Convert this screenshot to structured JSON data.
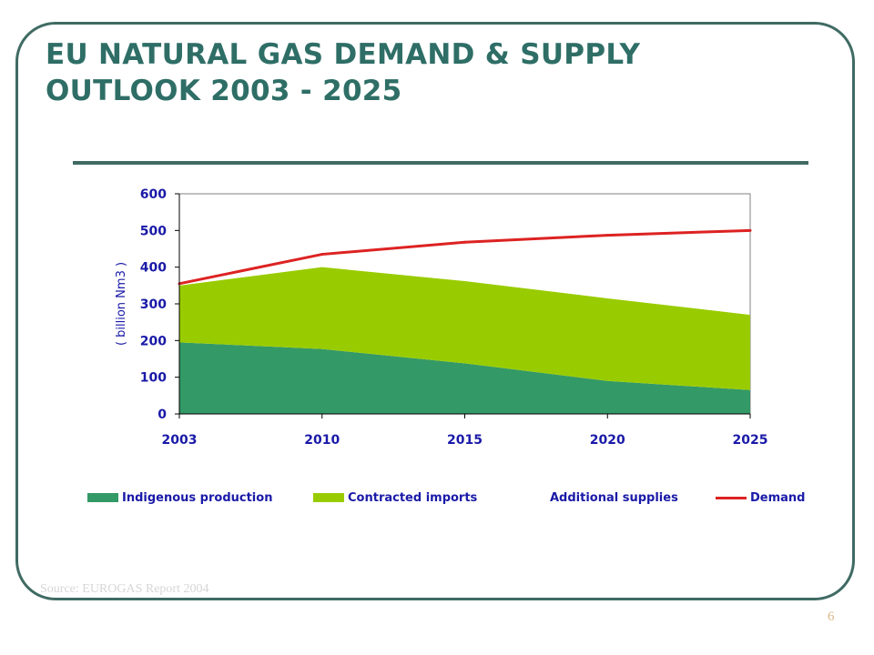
{
  "slide": {
    "title_line1": "EU NATURAL GAS DEMAND & SUPPLY",
    "title_line2": "OUTLOOK 2003 - 2025",
    "source": "Source: EUROGAS Report 2004",
    "page_number": "6"
  },
  "chart_data": {
    "type": "area",
    "x": [
      "2003",
      "2010",
      "2015",
      "2020",
      "2025"
    ],
    "ylabel": "( billion Nm3 )",
    "ylim": [
      0,
      600
    ],
    "yticks": [
      0,
      100,
      200,
      300,
      400,
      500,
      600
    ],
    "grid": false,
    "legend_position": "bottom",
    "series": [
      {
        "name": "Indigenous production",
        "type": "area",
        "stacked": true,
        "color": "#339966",
        "values": [
          195,
          177,
          138,
          90,
          65
        ]
      },
      {
        "name": "Contracted imports",
        "type": "area",
        "stacked": true,
        "color": "#99cc00",
        "values": [
          155,
          223,
          224,
          225,
          205
        ]
      },
      {
        "name": "Additional supplies",
        "type": "area",
        "stacked": true,
        "color": "#ffffff",
        "values": [
          0,
          0,
          0,
          0,
          0
        ]
      },
      {
        "name": "Demand",
        "type": "line",
        "color": "#dd2222",
        "values": [
          355,
          435,
          468,
          487,
          500
        ]
      }
    ],
    "axis_text_color": "#1a1aa8"
  }
}
